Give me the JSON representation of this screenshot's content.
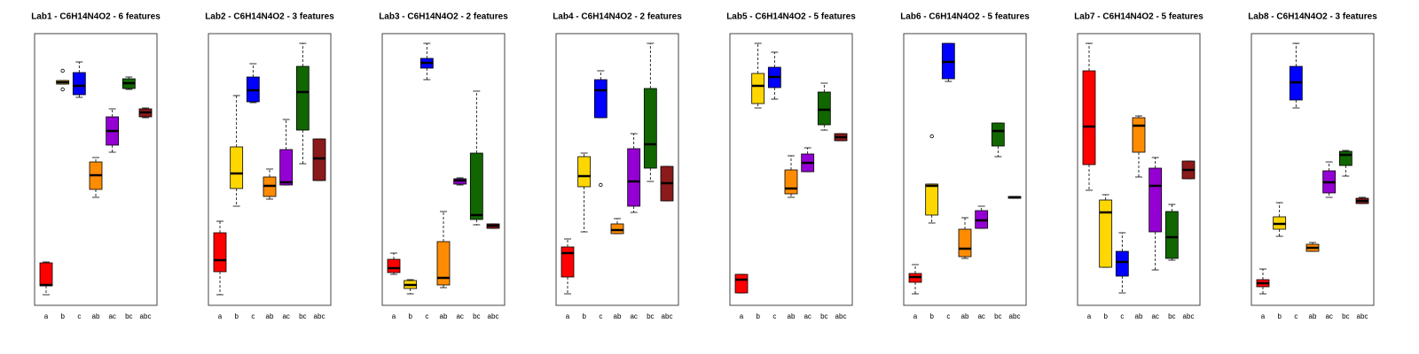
{
  "chart_data": [
    {
      "type": "box",
      "title": "Lab1 - C6H14N4O2 - 6 features",
      "categories": [
        "a",
        "b",
        "c",
        "ab",
        "ac",
        "bc",
        "abc"
      ],
      "colors": [
        "#ff0000",
        "#ffd700",
        "#0000ff",
        "#ff8c00",
        "#9400d3",
        "#116600",
        "#8b1a1a"
      ],
      "ylim": [
        0,
        307
      ],
      "boxes": [
        {
          "min": 12,
          "q1": 22,
          "median": 23,
          "q3": 48,
          "max": 49
        },
        {
          "min": 250,
          "q1": 250,
          "median": 252,
          "q3": 254,
          "max": 254,
          "outliers": [
            265,
            244
          ]
        },
        {
          "min": 235,
          "q1": 238,
          "median": 248,
          "q3": 263,
          "max": 275
        },
        {
          "min": 122,
          "q1": 131,
          "median": 147,
          "q3": 162,
          "max": 167
        },
        {
          "min": 173,
          "q1": 181,
          "median": 197,
          "q3": 213,
          "max": 222
        },
        {
          "min": 244,
          "q1": 245,
          "median": 251,
          "q3": 256,
          "max": 258
        },
        {
          "min": 212,
          "q1": 213,
          "median": 218,
          "q3": 222,
          "max": 223
        }
      ]
    },
    {
      "type": "box",
      "title": "Lab2 - C6H14N4O2 - 3 features",
      "categories": [
        "a",
        "b",
        "c",
        "ab",
        "ac",
        "bc",
        "abc"
      ],
      "colors": [
        "#ff0000",
        "#ffd700",
        "#0000ff",
        "#ff8c00",
        "#9400d3",
        "#116600",
        "#8b1a1a"
      ],
      "ylim": [
        0,
        307
      ],
      "boxes": [
        {
          "min": 12,
          "q1": 38,
          "median": 51,
          "q3": 82,
          "max": 95
        },
        {
          "min": 112,
          "q1": 132,
          "median": 149,
          "q3": 179,
          "max": 237
        },
        {
          "min": 229,
          "q1": 230,
          "median": 243,
          "q3": 258,
          "max": 273
        },
        {
          "min": 120,
          "q1": 123,
          "median": 135,
          "q3": 145,
          "max": 154
        },
        {
          "min": 136,
          "q1": 136,
          "median": 139,
          "q3": 176,
          "max": 210
        },
        {
          "min": 160,
          "q1": 198,
          "median": 241,
          "q3": 270,
          "max": 296
        },
        {
          "min": 141,
          "q1": 141,
          "median": 166,
          "q3": 188,
          "max": 188
        }
      ]
    },
    {
      "type": "box",
      "title": "Lab3 - C6H14N4O2 - 2 features",
      "categories": [
        "a",
        "b",
        "c",
        "ab",
        "ac",
        "bc",
        "abc"
      ],
      "colors": [
        "#ff0000",
        "#ffd700",
        "#0000ff",
        "#ff8c00",
        "#9400d3",
        "#116600",
        "#8b1a1a"
      ],
      "ylim": [
        0,
        307
      ],
      "boxes": [
        {
          "min": 35,
          "q1": 37,
          "median": 42,
          "q3": 52,
          "max": 59
        },
        {
          "min": 13,
          "q1": 19,
          "median": 23,
          "q3": 28,
          "max": 29
        },
        {
          "min": 255,
          "q1": 268,
          "median": 274,
          "q3": 279,
          "max": 296
        },
        {
          "min": 20,
          "q1": 23,
          "median": 31,
          "q3": 72,
          "max": 106
        },
        {
          "min": 136,
          "q1": 137,
          "median": 141,
          "q3": 143,
          "max": 144
        },
        {
          "min": 91,
          "q1": 97,
          "median": 102,
          "q3": 172,
          "max": 242
        },
        {
          "min": 87,
          "q1": 87,
          "median": 90,
          "q3": 92,
          "max": 92
        }
      ]
    },
    {
      "type": "box",
      "title": "Lab4 - C6H14N4O2 - 2 features",
      "categories": [
        "a",
        "b",
        "c",
        "ab",
        "ac",
        "bc",
        "abc"
      ],
      "colors": [
        "#ff0000",
        "#ffd700",
        "#0000ff",
        "#ff8c00",
        "#9400d3",
        "#116600",
        "#8b1a1a"
      ],
      "ylim": [
        0,
        307
      ],
      "boxes": [
        {
          "min": 13,
          "q1": 32,
          "median": 59,
          "q3": 66,
          "max": 75
        },
        {
          "min": 83,
          "q1": 134,
          "median": 146,
          "q3": 168,
          "max": 172
        },
        {
          "min": 212,
          "q1": 212,
          "median": 243,
          "q3": 255,
          "max": 265,
          "outliers": [
            136
          ]
        },
        {
          "min": 81,
          "q1": 81,
          "median": 85,
          "q3": 92,
          "max": 98
        },
        {
          "min": 105,
          "q1": 112,
          "median": 140,
          "q3": 177,
          "max": 194
        },
        {
          "min": 140,
          "q1": 155,
          "median": 182,
          "q3": 245,
          "max": 296
        },
        {
          "min": 118,
          "q1": 118,
          "median": 138,
          "q3": 157,
          "max": 157
        }
      ]
    },
    {
      "type": "box",
      "title": "Lab5 - C6H14N4O2 - 5 features",
      "categories": [
        "a",
        "b",
        "c",
        "ab",
        "ac",
        "bc",
        "abc"
      ],
      "colors": [
        "#ff0000",
        "#ffd700",
        "#0000ff",
        "#ff8c00",
        "#9400d3",
        "#116600",
        "#8b1a1a"
      ],
      "ylim": [
        0,
        307
      ],
      "boxes": [
        {
          "min": 14,
          "q1": 14,
          "median": 29,
          "q3": 35,
          "max": 35
        },
        {
          "min": 223,
          "q1": 228,
          "median": 248,
          "q3": 262,
          "max": 296
        },
        {
          "min": 233,
          "q1": 246,
          "median": 258,
          "q3": 269,
          "max": 286
        },
        {
          "min": 122,
          "q1": 126,
          "median": 132,
          "q3": 153,
          "max": 169
        },
        {
          "min": 151,
          "q1": 151,
          "median": 161,
          "q3": 171,
          "max": 178
        },
        {
          "min": 198,
          "q1": 204,
          "median": 221,
          "q3": 241,
          "max": 251
        },
        {
          "min": 186,
          "q1": 186,
          "median": 190,
          "q3": 194,
          "max": 194
        }
      ]
    },
    {
      "type": "box",
      "title": "Lab6 - C6H14N4O2 - 5 features",
      "categories": [
        "a",
        "b",
        "c",
        "ab",
        "ac",
        "bc",
        "abc"
      ],
      "colors": [
        "#ff0000",
        "#ffd700",
        "#0000ff",
        "#ff8c00",
        "#9400d3",
        "#116600",
        "#8b1a1a"
      ],
      "ylim": [
        0,
        307
      ],
      "boxes": [
        {
          "min": 13,
          "q1": 26,
          "median": 32,
          "q3": 36,
          "max": 46
        },
        {
          "min": 93,
          "q1": 102,
          "median": 135,
          "q3": 137,
          "max": 137,
          "outliers": [
            191
          ]
        },
        {
          "min": 253,
          "q1": 256,
          "median": 275,
          "q3": 296,
          "max": 296
        },
        {
          "min": 53,
          "q1": 55,
          "median": 64,
          "q3": 86,
          "max": 99
        },
        {
          "min": 87,
          "q1": 87,
          "median": 96,
          "q3": 107,
          "max": 112
        },
        {
          "min": 168,
          "q1": 180,
          "median": 197,
          "q3": 206,
          "max": 206
        },
        {
          "min": 121,
          "q1": 121,
          "median": 122,
          "q3": 123,
          "max": 123
        }
      ]
    },
    {
      "type": "box",
      "title": "Lab7 - C6H14N4O2 - 5 features",
      "categories": [
        "a",
        "b",
        "c",
        "ab",
        "ac",
        "bc",
        "abc"
      ],
      "colors": [
        "#ff0000",
        "#ffd700",
        "#0000ff",
        "#ff8c00",
        "#9400d3",
        "#116600",
        "#8b1a1a"
      ],
      "ylim": [
        0,
        307
      ],
      "boxes": [
        {
          "min": 130,
          "q1": 159,
          "median": 202,
          "q3": 265,
          "max": 296
        },
        {
          "min": 43,
          "q1": 43,
          "median": 105,
          "q3": 119,
          "max": 125
        },
        {
          "min": 14,
          "q1": 33,
          "median": 49,
          "q3": 61,
          "max": 82
        },
        {
          "min": 145,
          "q1": 173,
          "median": 203,
          "q3": 212,
          "max": 214
        },
        {
          "min": 40,
          "q1": 83,
          "median": 135,
          "q3": 155,
          "max": 167
        },
        {
          "min": 51,
          "q1": 53,
          "median": 77,
          "q3": 106,
          "max": 114
        },
        {
          "min": 143,
          "q1": 143,
          "median": 153,
          "q3": 163,
          "max": 163
        }
      ]
    },
    {
      "type": "box",
      "title": "Lab8 - C6H14N4O2 - 3 features",
      "categories": [
        "a",
        "b",
        "c",
        "ab",
        "ac",
        "bc",
        "abc"
      ],
      "colors": [
        "#ff0000",
        "#ffd700",
        "#0000ff",
        "#ff8c00",
        "#9400d3",
        "#116600",
        "#8b1a1a"
      ],
      "ylim": [
        0,
        307
      ],
      "boxes": [
        {
          "min": 13,
          "q1": 21,
          "median": 25,
          "q3": 29,
          "max": 41
        },
        {
          "min": 78,
          "q1": 86,
          "median": 92,
          "q3": 100,
          "max": 116
        },
        {
          "min": 223,
          "q1": 232,
          "median": 252,
          "q3": 270,
          "max": 296
        },
        {
          "min": 61,
          "q1": 61,
          "median": 65,
          "q3": 69,
          "max": 71
        },
        {
          "min": 122,
          "q1": 127,
          "median": 139,
          "q3": 152,
          "max": 162
        },
        {
          "min": 146,
          "q1": 158,
          "median": 170,
          "q3": 174,
          "max": 175
        },
        {
          "min": 115,
          "q1": 115,
          "median": 118,
          "q3": 121,
          "max": 122
        }
      ]
    }
  ]
}
